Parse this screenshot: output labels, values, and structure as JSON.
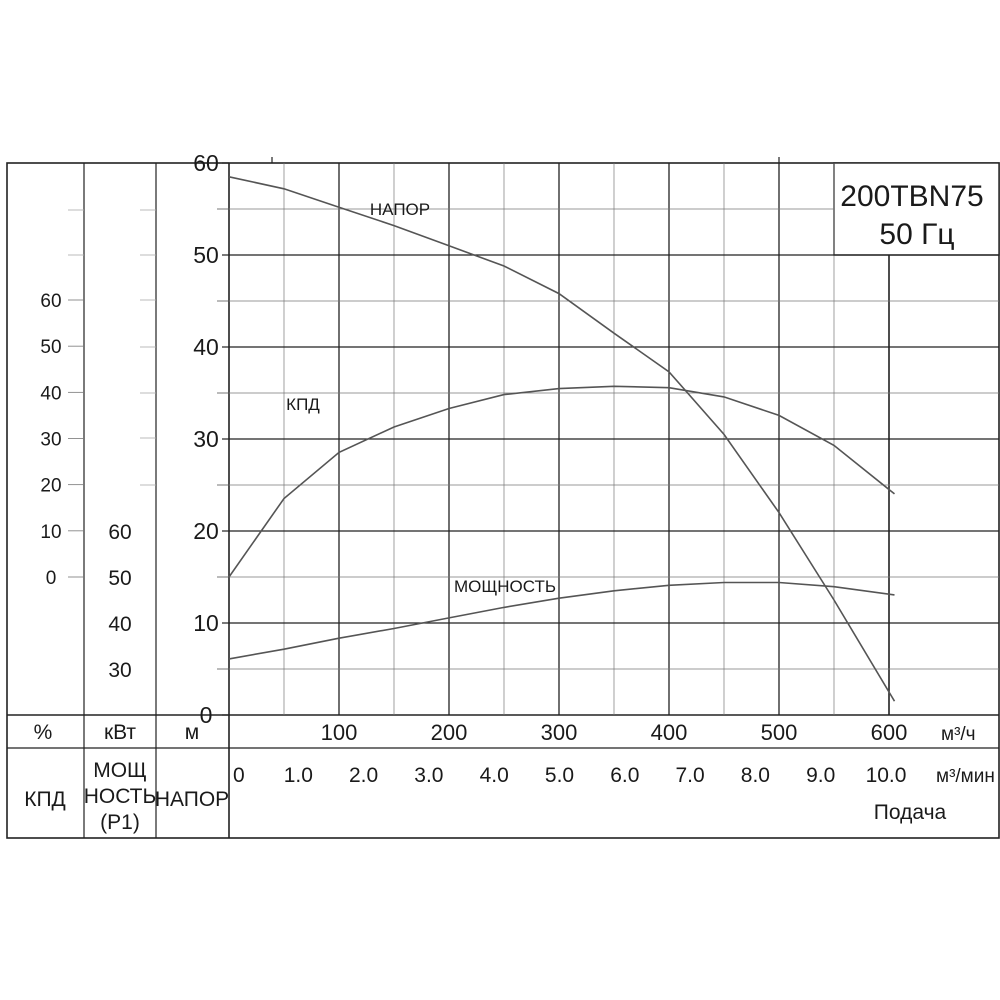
{
  "chart_data": {
    "type": "line",
    "model": "200TBN75",
    "frequency": "50 Гц",
    "x_axis_flow_m3h": {
      "unit": "м³/ч",
      "range": [
        0,
        600
      ],
      "ticks": [
        "100",
        "200",
        "300",
        "400",
        "500",
        "600"
      ]
    },
    "x_axis_flow_m3min": {
      "unit": "м³/мин",
      "range": [
        0,
        10
      ],
      "ticks": [
        "0",
        "1.0",
        "2.0",
        "3.0",
        "4.0",
        "5.0",
        "6.0",
        "7.0",
        "8.0",
        "9.0",
        "10.0"
      ]
    },
    "xlabel": "Подача",
    "axis_head": {
      "unit": "м",
      "label": "НАПОР",
      "range": [
        0,
        60
      ],
      "ticks": [
        "60",
        "50",
        "40",
        "30",
        "20",
        "10",
        "0"
      ]
    },
    "axis_power": {
      "unit": "кВт",
      "label_lines": [
        "МОЩ",
        "НОСТЬ",
        "(P1)"
      ],
      "range": [
        30,
        60
      ],
      "ticks": [
        "60",
        "50",
        "40",
        "30"
      ]
    },
    "axis_efficiency": {
      "unit": "%",
      "label": "КПД",
      "range": [
        0,
        60
      ],
      "ticks": [
        "60",
        "50",
        "40",
        "30",
        "20",
        "10",
        "0"
      ]
    },
    "grid": true,
    "series": [
      {
        "name": "НАПОР",
        "unit": "м",
        "x": [
          0,
          50,
          100,
          150,
          200,
          250,
          300,
          350,
          400,
          450,
          500,
          550,
          605
        ],
        "y": [
          58.5,
          57.2,
          55.2,
          53.2,
          51.0,
          48.8,
          45.8,
          41.5,
          37.3,
          30.5,
          22.0,
          12.5,
          1.5
        ]
      },
      {
        "name": "КПД",
        "unit": "%",
        "x": [
          0,
          50,
          100,
          150,
          200,
          250,
          300,
          350,
          400,
          450,
          500,
          550,
          605
        ],
        "y": [
          0,
          17,
          27,
          32.5,
          36.5,
          39.5,
          40.8,
          41.3,
          41.0,
          39.0,
          35.0,
          28.5,
          18.0
        ]
      },
      {
        "name": "МОЩНОСТЬ",
        "unit": "кВт",
        "x": [
          0,
          50,
          100,
          150,
          200,
          250,
          300,
          350,
          400,
          450,
          500,
          550,
          605
        ],
        "y": [
          32.2,
          34.3,
          36.7,
          38.8,
          41.1,
          43.4,
          45.4,
          47.0,
          48.2,
          48.8,
          48.8,
          47.9,
          46.1
        ]
      }
    ]
  },
  "footer": {
    "eff_unit": "%",
    "power_unit": "кВт",
    "head_unit": "м",
    "eff_label": "КПД",
    "power_label_1": "МОЩ",
    "power_label_2": "НОСТЬ",
    "power_label_3": "(P1)",
    "head_label": "НАПОР"
  }
}
